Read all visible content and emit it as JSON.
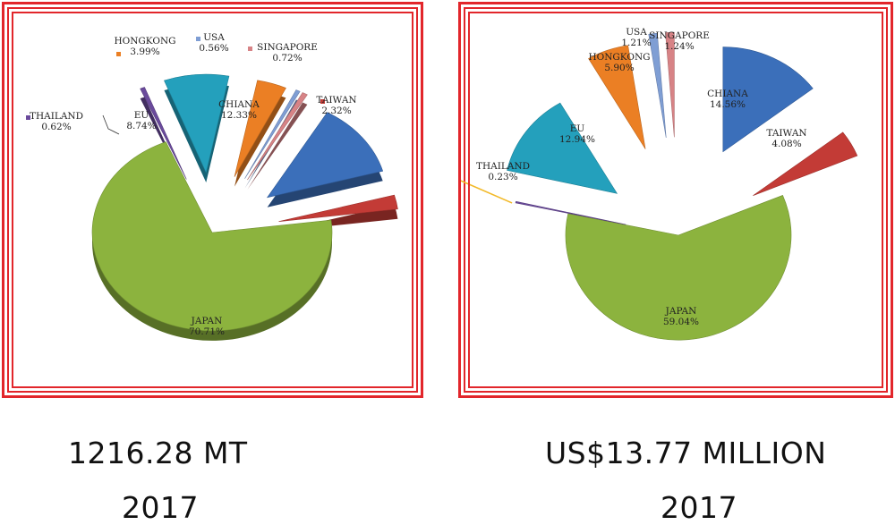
{
  "colors": {
    "frame": "#e2262b",
    "JAPAN": "#8cb33e",
    "CHIANA": "#3b6fba",
    "TAIWAN": "#c33b36",
    "SINGAPORE": "#d78386",
    "USA": "#7f9ed4",
    "HONGKONG": "#eb7f24",
    "EU": "#24a0bc",
    "THAILAND": "#6a4a9c",
    "THAILAND_value": "#f2b928"
  },
  "chart_data": [
    {
      "type": "pie",
      "title": "",
      "caption": "1216.28 MT",
      "year": "2017",
      "slices": [
        {
          "label": "CHIANA",
          "value": 12.33,
          "text": "12.33%"
        },
        {
          "label": "TAIWAN",
          "value": 2.32,
          "text": "2.32%"
        },
        {
          "label": "JAPAN",
          "value": 70.71,
          "text": "70.71%"
        },
        {
          "label": "THAILAND",
          "value": 0.62,
          "text": "0.62%"
        },
        {
          "label": "EU",
          "value": 8.74,
          "text": "8.74%"
        },
        {
          "label": "HONGKONG",
          "value": 3.99,
          "text": "3.99%"
        },
        {
          "label": "USA",
          "value": 0.56,
          "text": "0.56%"
        },
        {
          "label": "SINGAPORE",
          "value": 0.72,
          "text": "0.72%"
        }
      ]
    },
    {
      "type": "pie",
      "title": "",
      "caption": "US$13.77 MILLION",
      "year": "2017",
      "slices": [
        {
          "label": "CHIANA",
          "value": 14.56,
          "text": "14.56%"
        },
        {
          "label": "TAIWAN",
          "value": 4.08,
          "text": "4.08%"
        },
        {
          "label": "JAPAN",
          "value": 59.04,
          "text": "59.04%"
        },
        {
          "label": "THAILAND",
          "value": 0.23,
          "text": "0.23%"
        },
        {
          "label": "EU",
          "value": 12.94,
          "text": "12.94%"
        },
        {
          "label": "HONGKONG",
          "value": 5.9,
          "text": "5.90%"
        },
        {
          "label": "USA",
          "value": 1.21,
          "text": "1.21%"
        },
        {
          "label": "SINGAPORE",
          "value": 1.24,
          "text": "1.24%"
        }
      ]
    }
  ]
}
